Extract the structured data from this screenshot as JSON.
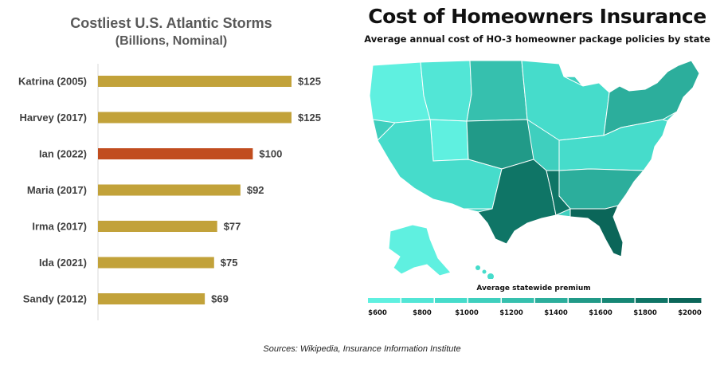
{
  "chart_data": [
    {
      "type": "bar",
      "orientation": "horizontal",
      "title": "Costliest U.S. Atlantic Storms",
      "subtitle": "(Billions, Nominal)",
      "categories": [
        "Katrina (2005)",
        "Harvey (2017)",
        "Ian (2022)",
        "Maria (2017)",
        "Irma (2017)",
        "Ida (2021)",
        "Sandy (2012)"
      ],
      "values": [
        125,
        125,
        100,
        92,
        77,
        75,
        69
      ],
      "value_labels": [
        "$125",
        "$125",
        "$100",
        "$92",
        "$77",
        "$75",
        "$69"
      ],
      "xlim": [
        0,
        125
      ],
      "bar_color": "#c2a23a",
      "highlight_category": "Ian (2022)",
      "highlight_color": "#c14d1f",
      "grid": false,
      "legend": "none"
    },
    {
      "type": "choropleth",
      "title": "Cost of Homeowners Insurance",
      "subtitle": "Average annual cost of HO-3 homeowner package policies by state",
      "legend_title": "Average statewide premium",
      "legend_ticks": [
        "$600",
        "$800",
        "$1000",
        "$1200",
        "$1400",
        "$1600",
        "$1800",
        "$2000"
      ],
      "legend_colors": [
        "#5ff0e0",
        "#52e6d6",
        "#46dccb",
        "#3fcfbe",
        "#36c0ae",
        "#2cae9c",
        "#219a88",
        "#168775",
        "#0f7566",
        "#0b6659"
      ],
      "legend_placement": "bottom",
      "high_cost_states": [
        "Florida",
        "Louisiana",
        "Texas",
        "Oklahoma"
      ]
    }
  ],
  "footer": {
    "sources": "Sources: Wikipedia, Insurance Information Institute"
  }
}
